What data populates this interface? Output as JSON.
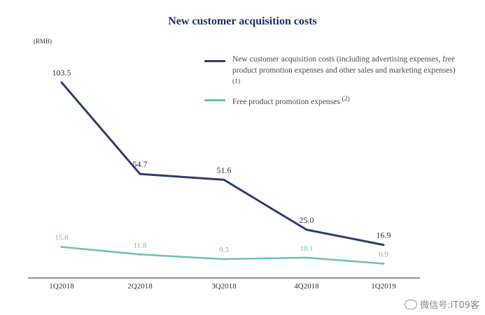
{
  "chart_data": {
    "type": "line",
    "title": "New customer acquisition costs",
    "unit": "(RMB)",
    "categories": [
      "1Q2018",
      "2Q2018",
      "3Q2018",
      "4Q2018",
      "1Q2019"
    ],
    "series": [
      {
        "name": "New customer acquisition costs (including advertising expenses, free product promotion expenses and other sales and marketing expenses)",
        "note": "(1)",
        "color": "#2c3e6b",
        "values": [
          103.5,
          54.7,
          51.6,
          25.0,
          16.9
        ],
        "labels": [
          "103.5",
          "54.7",
          "51.6",
          "25.0",
          "16.9"
        ]
      },
      {
        "name": "Free product promotion expenses",
        "note": "(2)",
        "color": "#6cbfb2",
        "values": [
          15.8,
          11.8,
          9.3,
          10.1,
          6.9
        ],
        "labels": [
          "15.8",
          "11.8",
          "9.3",
          "10.1",
          "6.9"
        ]
      }
    ],
    "ylim": [
      0,
      120
    ],
    "grid": false,
    "legend": "top-right"
  },
  "watermark": {
    "text": "微信号:IT09客",
    "icon": "wechat-icon"
  }
}
